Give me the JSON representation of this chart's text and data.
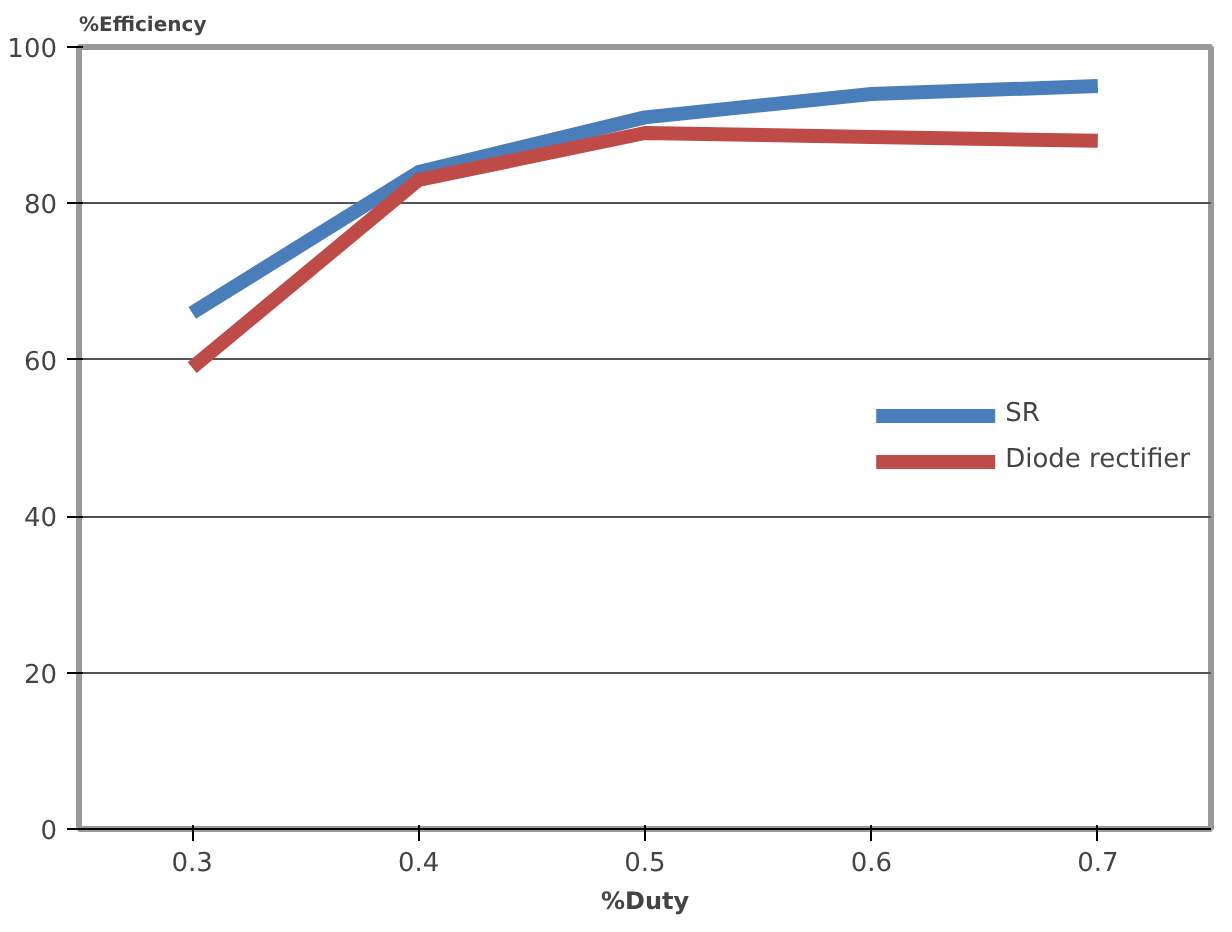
{
  "chart_data": {
    "type": "line",
    "xlabel": "%Duty",
    "ylabel": "%Efficiency",
    "x": [
      0.3,
      0.4,
      0.5,
      0.6,
      0.7
    ],
    "series": [
      {
        "name": "SR",
        "color": "#4a7ebb",
        "values": [
          66,
          84,
          91,
          94,
          95
        ]
      },
      {
        "name": "Diode rectifier",
        "color": "#be4b48",
        "values": [
          59,
          83,
          89,
          88.5,
          88
        ]
      }
    ],
    "xlim": [
      0.25,
      0.75
    ],
    "xticks": [
      0.3,
      0.4,
      0.5,
      0.6,
      0.7
    ],
    "ylim": [
      0,
      100
    ],
    "yticks": [
      0,
      20,
      40,
      60,
      80,
      100
    ],
    "grid": "y",
    "legend": "right",
    "marker": "none",
    "line_style": "solid"
  }
}
